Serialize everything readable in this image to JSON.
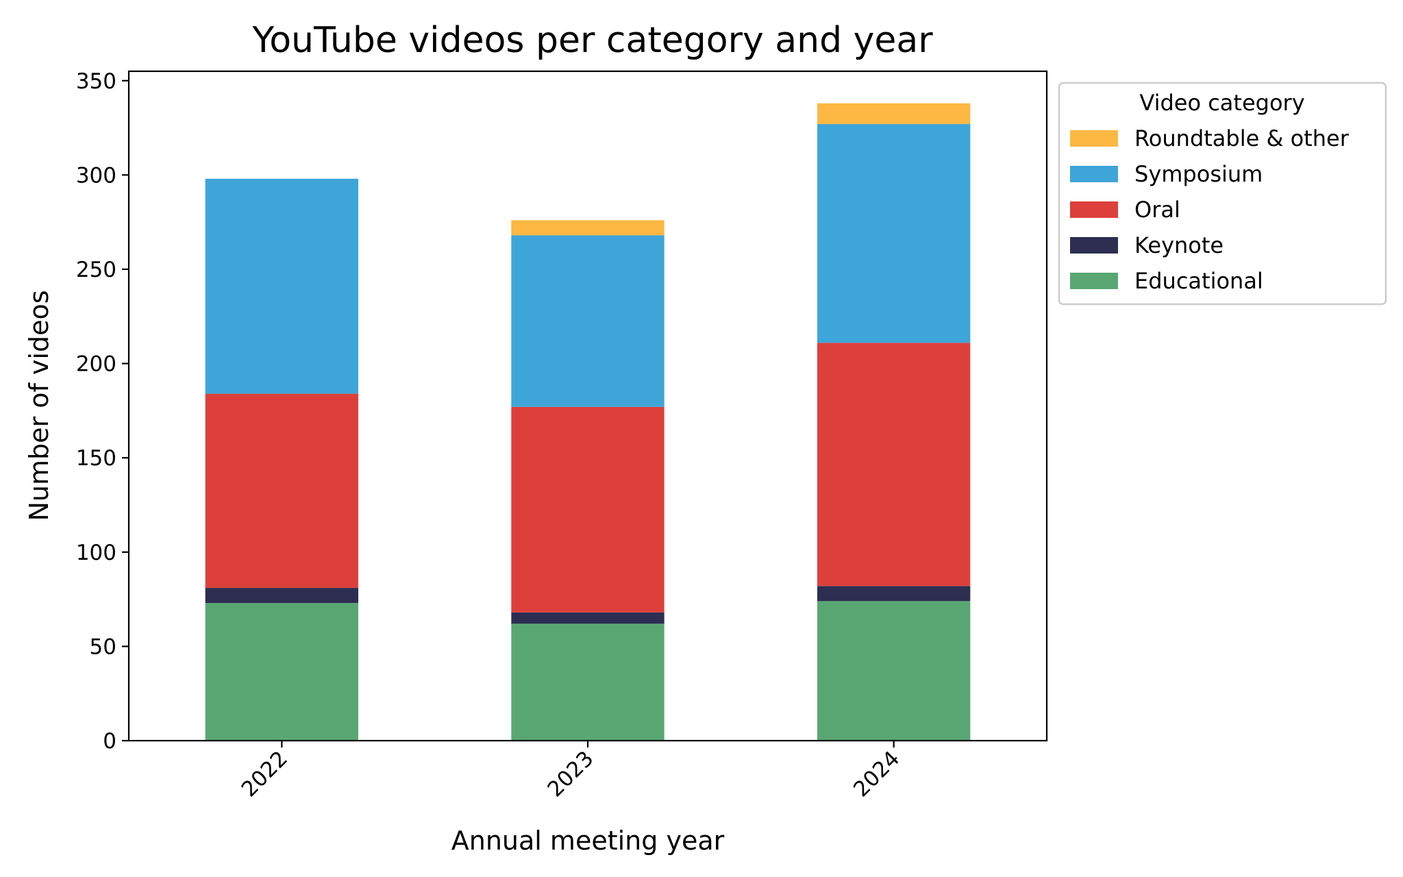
{
  "chart_data": {
    "type": "bar",
    "stacked": true,
    "title": "YouTube videos per category and year",
    "xlabel": "Annual meeting year",
    "ylabel": "Number of videos",
    "categories": [
      "2022",
      "2023",
      "2024"
    ],
    "ylim": [
      0,
      355
    ],
    "yticks": [
      0,
      50,
      100,
      150,
      200,
      250,
      300,
      350
    ],
    "grid": false,
    "legend": {
      "title": "Video category",
      "placement": "outside-upper-right"
    },
    "series": [
      {
        "name": "Educational",
        "color": "#58a773",
        "values": [
          73,
          62,
          74
        ]
      },
      {
        "name": "Keynote",
        "color": "#2d2e52",
        "values": [
          8,
          6,
          8
        ]
      },
      {
        "name": "Oral",
        "color": "#dd403b",
        "values": [
          103,
          109,
          129
        ]
      },
      {
        "name": "Symposium",
        "color": "#3ea5d9",
        "values": [
          114,
          91,
          116
        ]
      },
      {
        "name": "Roundtable & other",
        "color": "#fcb843",
        "values": [
          0,
          8,
          11
        ]
      }
    ]
  }
}
